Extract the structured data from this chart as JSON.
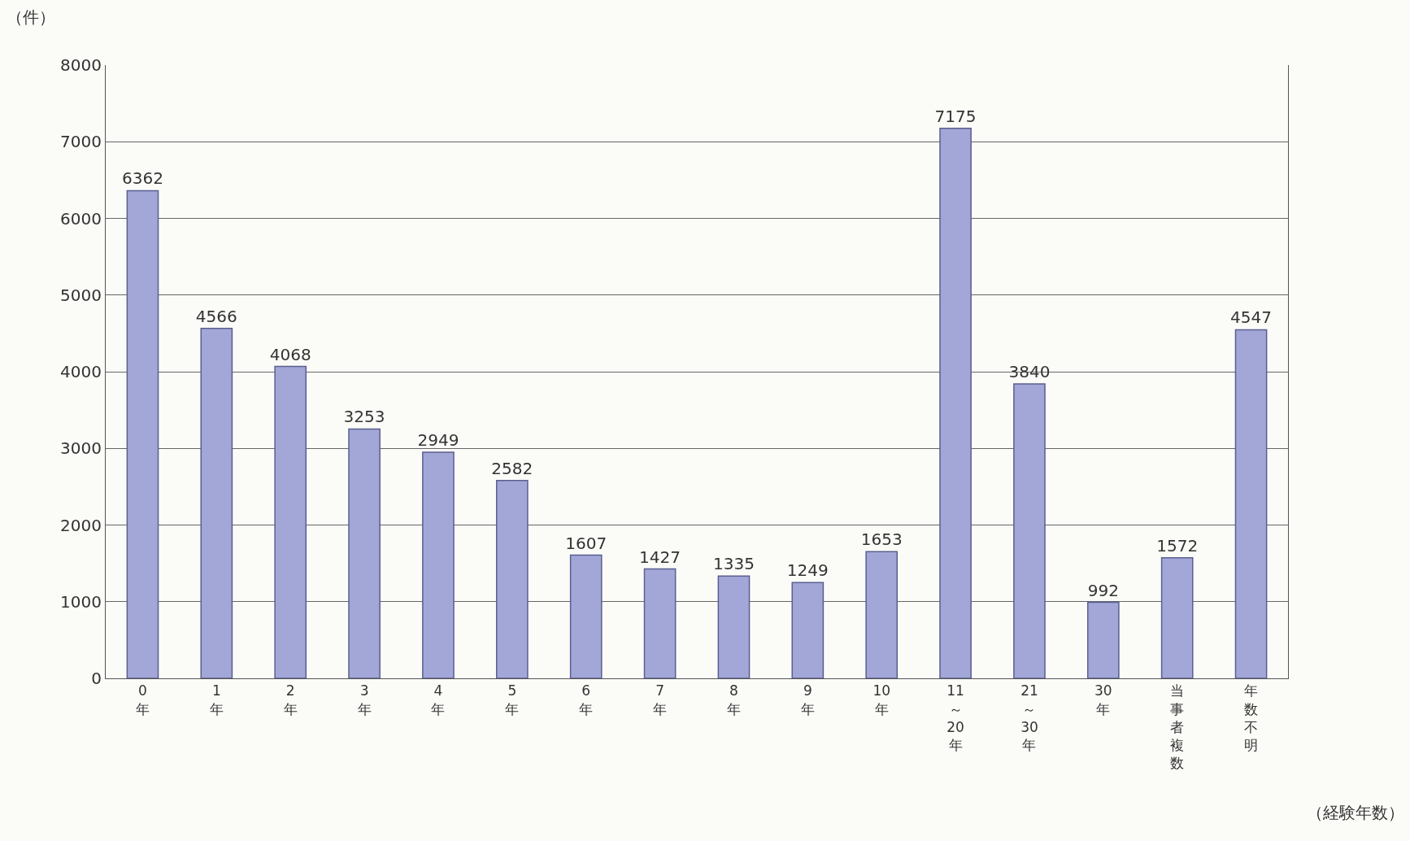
{
  "chart_data": {
    "type": "bar",
    "categories": [
      "0年",
      "1年",
      "2年",
      "3年",
      "4年",
      "5年",
      "6年",
      "7年",
      "8年",
      "9年",
      "10年",
      "11～20年",
      "21～30年",
      "30年",
      "当事者複数",
      "年数不明"
    ],
    "values": [
      6362,
      4566,
      4068,
      3253,
      2949,
      2582,
      1607,
      1427,
      1335,
      1249,
      1653,
      7175,
      3840,
      992,
      1572,
      4547
    ],
    "color": "#a3a7d8",
    "ylim": [
      0,
      8000
    ],
    "yticks": [
      0,
      1000,
      2000,
      3000,
      4000,
      5000,
      6000,
      7000,
      8000
    ],
    "ylabel": "（件）",
    "xlabel": "（経験年数）",
    "grid": "y",
    "data_labels": true,
    "legend": false
  }
}
